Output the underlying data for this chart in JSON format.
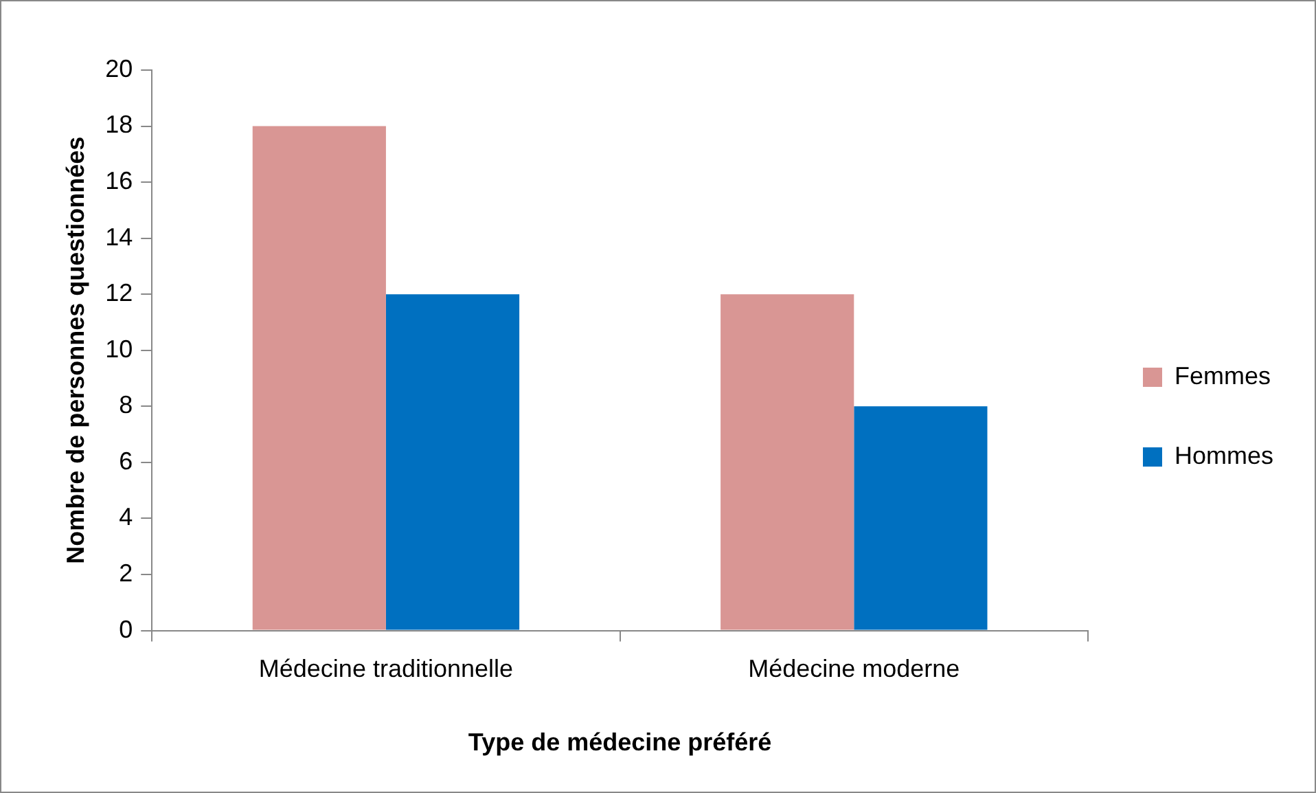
{
  "chart_data": {
    "type": "bar",
    "xlabel": "Type de médecine préféré",
    "ylabel": "Nombre de personnes questionnées",
    "categories": [
      "Médecine traditionnelle",
      "Médecine moderne"
    ],
    "series": [
      {
        "name": "Femmes",
        "color": "#d99694",
        "values": [
          18,
          12
        ]
      },
      {
        "name": "Hommes",
        "color": "#0070c0",
        "values": [
          12,
          8
        ]
      }
    ],
    "ylim": [
      0,
      20
    ],
    "yticks": [
      0,
      2,
      4,
      6,
      8,
      10,
      12,
      14,
      16,
      18,
      20
    ],
    "grid": false,
    "legend": "right"
  }
}
